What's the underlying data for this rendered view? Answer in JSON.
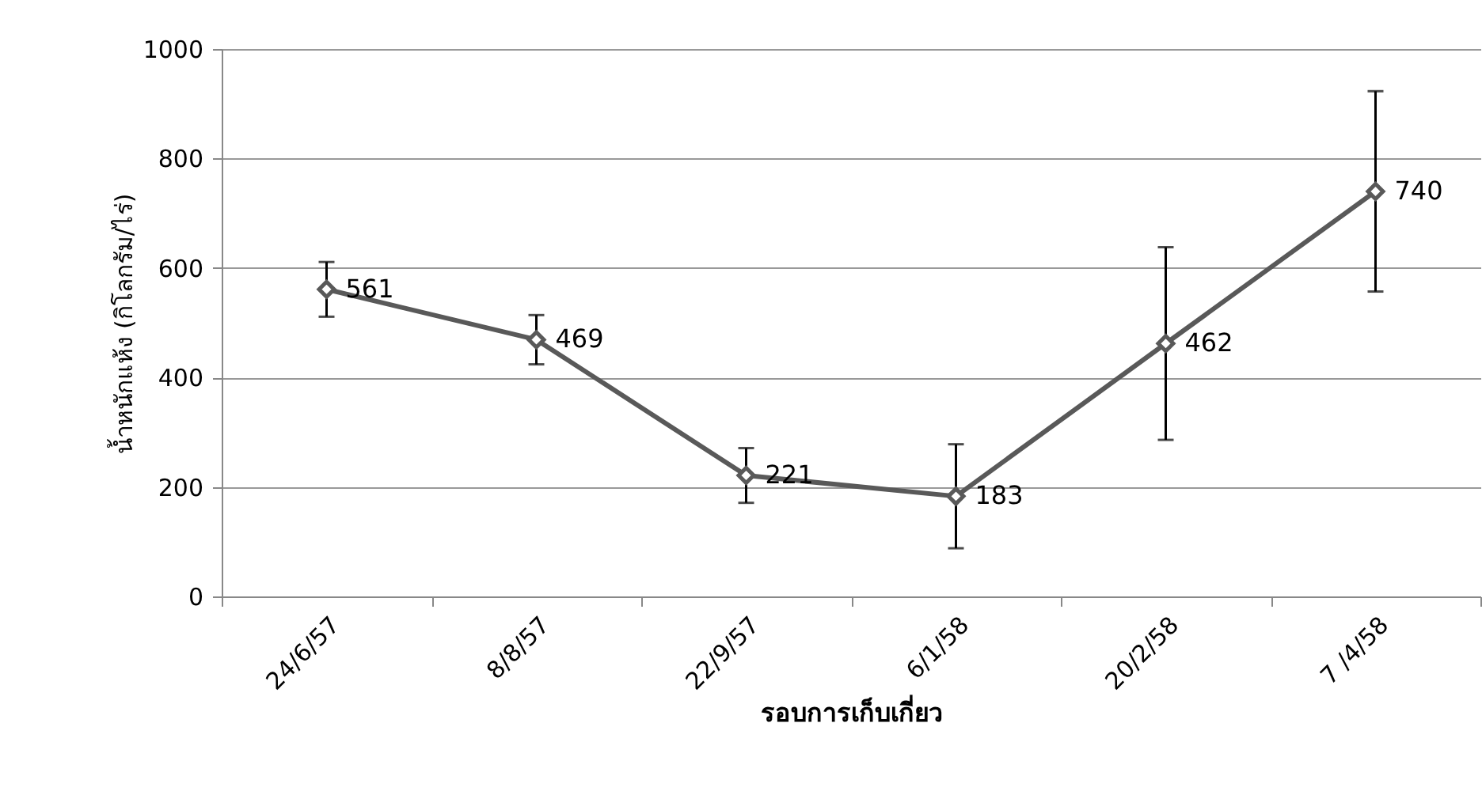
{
  "chart_data": {
    "type": "line",
    "xlabel": "รอบการเก็บเกี่ยว",
    "ylabel": "น้ำหนักแห้ง (กิโลกรัม/ไร่)",
    "categories": [
      "24/6/57",
      "8/8/57",
      "22/9/57",
      "6/1/58",
      "20/2/58",
      "7 /4/58"
    ],
    "series": [
      {
        "color": "#595959",
        "values": [
          561,
          469,
          221,
          183,
          462,
          740
        ],
        "errors": [
          50,
          45,
          50,
          95,
          176,
          183
        ]
      }
    ],
    "ylim": [
      0,
      1000
    ],
    "yticks": [
      0,
      200,
      400,
      600,
      800,
      1000
    ],
    "grid": "y",
    "marker": "diamond",
    "line_style": "solid",
    "data_labels": true
  }
}
